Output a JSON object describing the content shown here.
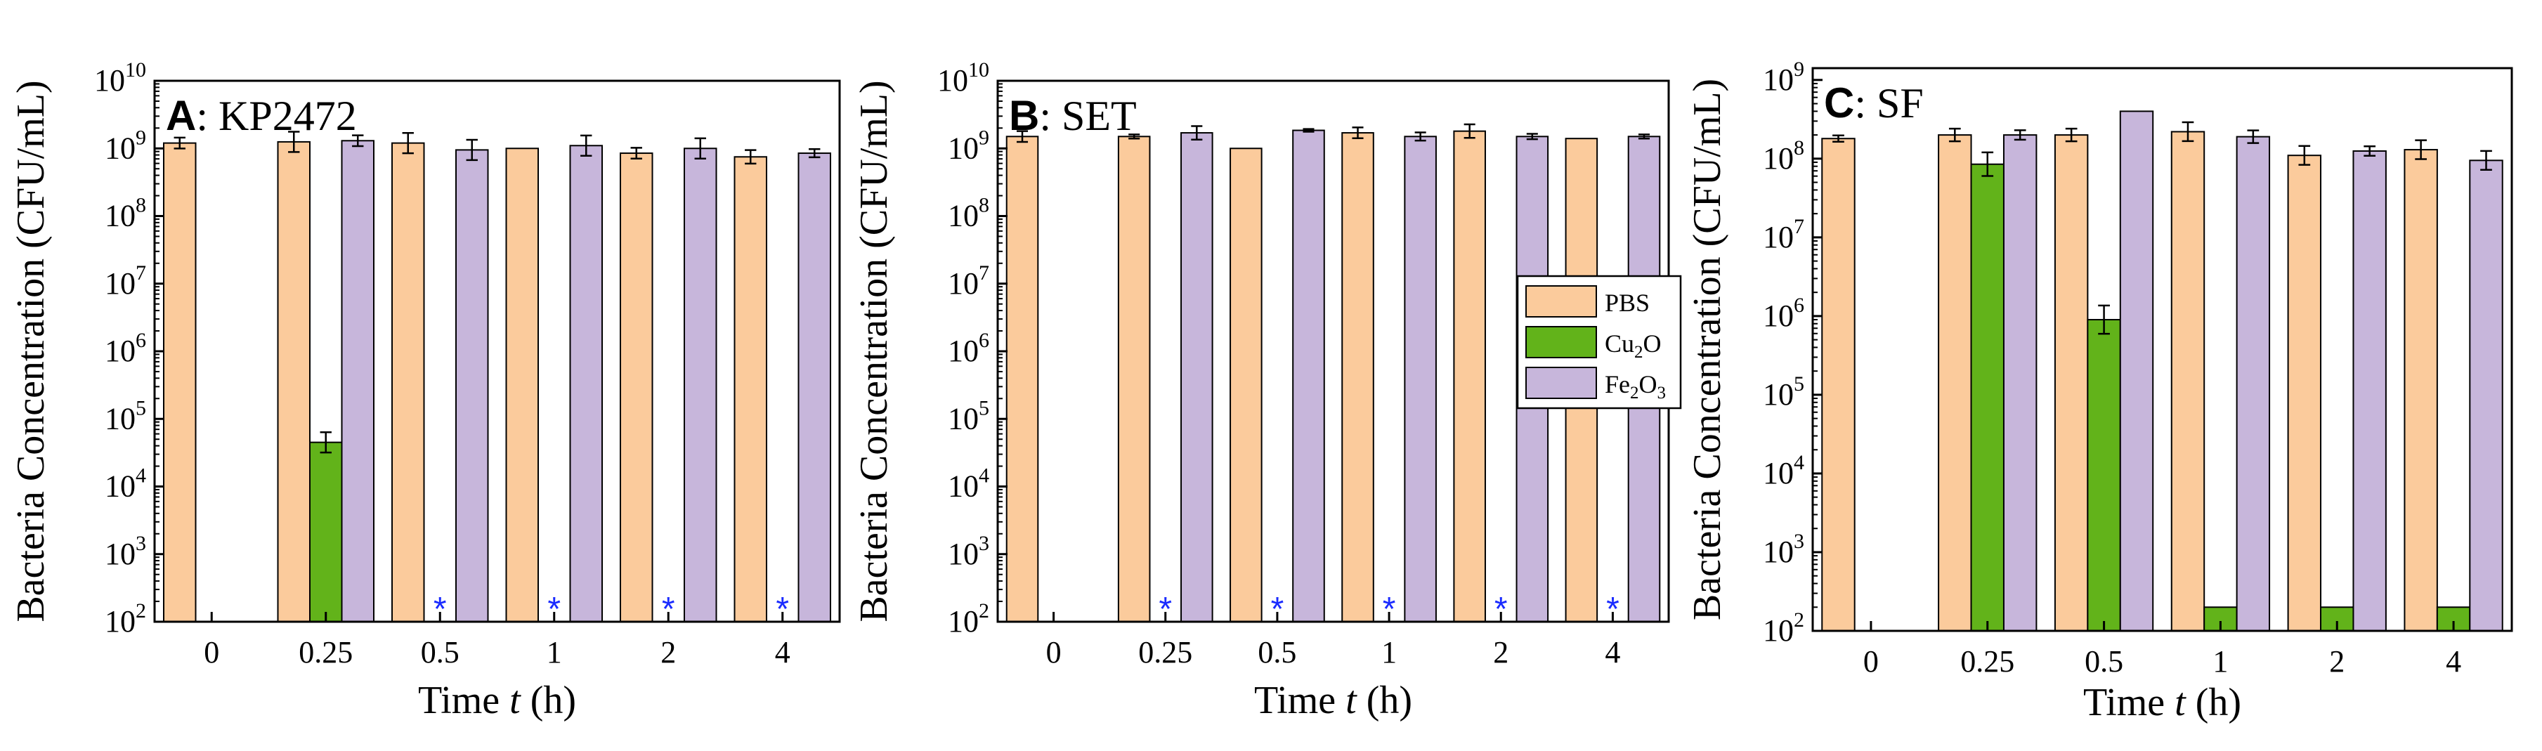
{
  "figure": {
    "x_axis_label": "Time",
    "x_axis_var": "t",
    "x_axis_unit": "(h)",
    "y_axis_label": "Bacteria Concentration (CFU/mL)",
    "below_detection_marker": "*"
  },
  "legend": {
    "entries": [
      {
        "name": "PBS",
        "parts": [
          "PBS"
        ]
      },
      {
        "name": "Cu2O",
        "parts": [
          "Cu",
          "2",
          "O"
        ]
      },
      {
        "name": "Fe2O3",
        "parts": [
          "Fe",
          "2",
          "O",
          "3"
        ]
      }
    ]
  },
  "colors": {
    "PBS": "#fbcb9c",
    "Cu2O": "#62b31a",
    "Fe2O3": "#c7b6db",
    "star": "#1a2bff",
    "axis": "#000000"
  },
  "chart_data": [
    {
      "type": "bar",
      "panel_letter": "A",
      "panel_name": "KP2472",
      "panel_label": "A: KP2472",
      "categories": [
        "0",
        "0.25",
        "0.5",
        "1",
        "2",
        "4"
      ],
      "xlabel": "Time t (h)",
      "ylabel": "Bacteria Concentration (CFU/mL)",
      "yscale": "log",
      "ylim_log10": [
        2,
        10
      ],
      "y_ticks_log10": [
        2,
        3,
        4,
        5,
        6,
        7,
        8,
        9,
        10
      ],
      "series": [
        {
          "name": "PBS",
          "values": [
            1200000000.0,
            1250000000.0,
            1200000000.0,
            1000000000.0,
            850000000.0,
            750000000.0
          ],
          "errors_log10": [
            0.08,
            0.15,
            0.15,
            0,
            0.08,
            0.1
          ]
        },
        {
          "name": "Cu2O",
          "values": [
            null,
            45000.0,
            null,
            null,
            null,
            null
          ],
          "errors_log10": [
            0,
            0.15,
            0,
            0,
            0,
            0
          ]
        },
        {
          "name": "Fe2O3",
          "values": [
            null,
            1300000000.0,
            950000000.0,
            1100000000.0,
            1000000000.0,
            850000000.0
          ],
          "errors_log10": [
            0,
            0.08,
            0.15,
            0.15,
            0.15,
            0.06
          ]
        }
      ],
      "below_detection": [
        {
          "category": "0.5",
          "series": "Cu2O"
        },
        {
          "category": "1",
          "series": "Cu2O"
        },
        {
          "category": "2",
          "series": "Cu2O"
        },
        {
          "category": "4",
          "series": "Cu2O"
        }
      ]
    },
    {
      "type": "bar",
      "panel_letter": "B",
      "panel_name": "SET",
      "panel_label": "B: SET",
      "categories": [
        "0",
        "0.25",
        "0.5",
        "1",
        "2",
        "4"
      ],
      "xlabel": "Time t (h)",
      "ylabel": "Bacteria Concentration (CFU/mL)",
      "yscale": "log",
      "ylim_log10": [
        2,
        10
      ],
      "y_ticks_log10": [
        2,
        3,
        4,
        5,
        6,
        7,
        8,
        9,
        10
      ],
      "series": [
        {
          "name": "PBS",
          "values": [
            1500000000.0,
            1500000000.0,
            1000000000.0,
            1700000000.0,
            1800000000.0,
            1400000000.0
          ],
          "errors_log10": [
            0.08,
            0.03,
            0,
            0.08,
            0.1,
            0
          ]
        },
        {
          "name": "Cu2O",
          "values": [
            null,
            null,
            null,
            null,
            null,
            null
          ],
          "errors_log10": [
            0,
            0,
            0,
            0,
            0,
            0
          ]
        },
        {
          "name": "Fe2O3",
          "values": [
            null,
            1700000000.0,
            1850000000.0,
            1500000000.0,
            1500000000.0,
            1500000000.0
          ],
          "errors_log10": [
            0,
            0.1,
            0.02,
            0.06,
            0.04,
            0.03
          ]
        }
      ],
      "below_detection": [
        {
          "category": "0.25",
          "series": "Cu2O"
        },
        {
          "category": "0.5",
          "series": "Cu2O"
        },
        {
          "category": "1",
          "series": "Cu2O"
        },
        {
          "category": "2",
          "series": "Cu2O"
        },
        {
          "category": "4",
          "series": "Cu2O"
        }
      ]
    },
    {
      "type": "bar",
      "panel_letter": "C",
      "panel_name": "SF",
      "panel_label": "C: SF",
      "categories": [
        "0",
        "0.25",
        "0.5",
        "1",
        "2",
        "4"
      ],
      "xlabel": "Time t (h)",
      "ylabel": "Bacteria Concentration (CFU/mL)",
      "yscale": "log",
      "ylim_log10": [
        2,
        9.15
      ],
      "y_ticks_log10": [
        2,
        3,
        4,
        5,
        6,
        7,
        8,
        9
      ],
      "series": [
        {
          "name": "PBS",
          "values": [
            180000000.0,
            200000000.0,
            200000000.0,
            220000000.0,
            110000000.0,
            130000000.0
          ],
          "errors_log10": [
            0.04,
            0.08,
            0.08,
            0.12,
            0.12,
            0.12
          ]
        },
        {
          "name": "Cu2O",
          "values": [
            null,
            85000000.0,
            900000.0,
            200,
            200,
            200
          ],
          "errors_log10": [
            0,
            0.15,
            0.18,
            0,
            0,
            0
          ]
        },
        {
          "name": "Fe2O3",
          "values": [
            null,
            200000000.0,
            400000000.0,
            190000000.0,
            125000000.0,
            95000000.0
          ],
          "errors_log10": [
            0,
            0.06,
            0,
            0.08,
            0.06,
            0.12
          ]
        }
      ],
      "below_detection": []
    }
  ]
}
